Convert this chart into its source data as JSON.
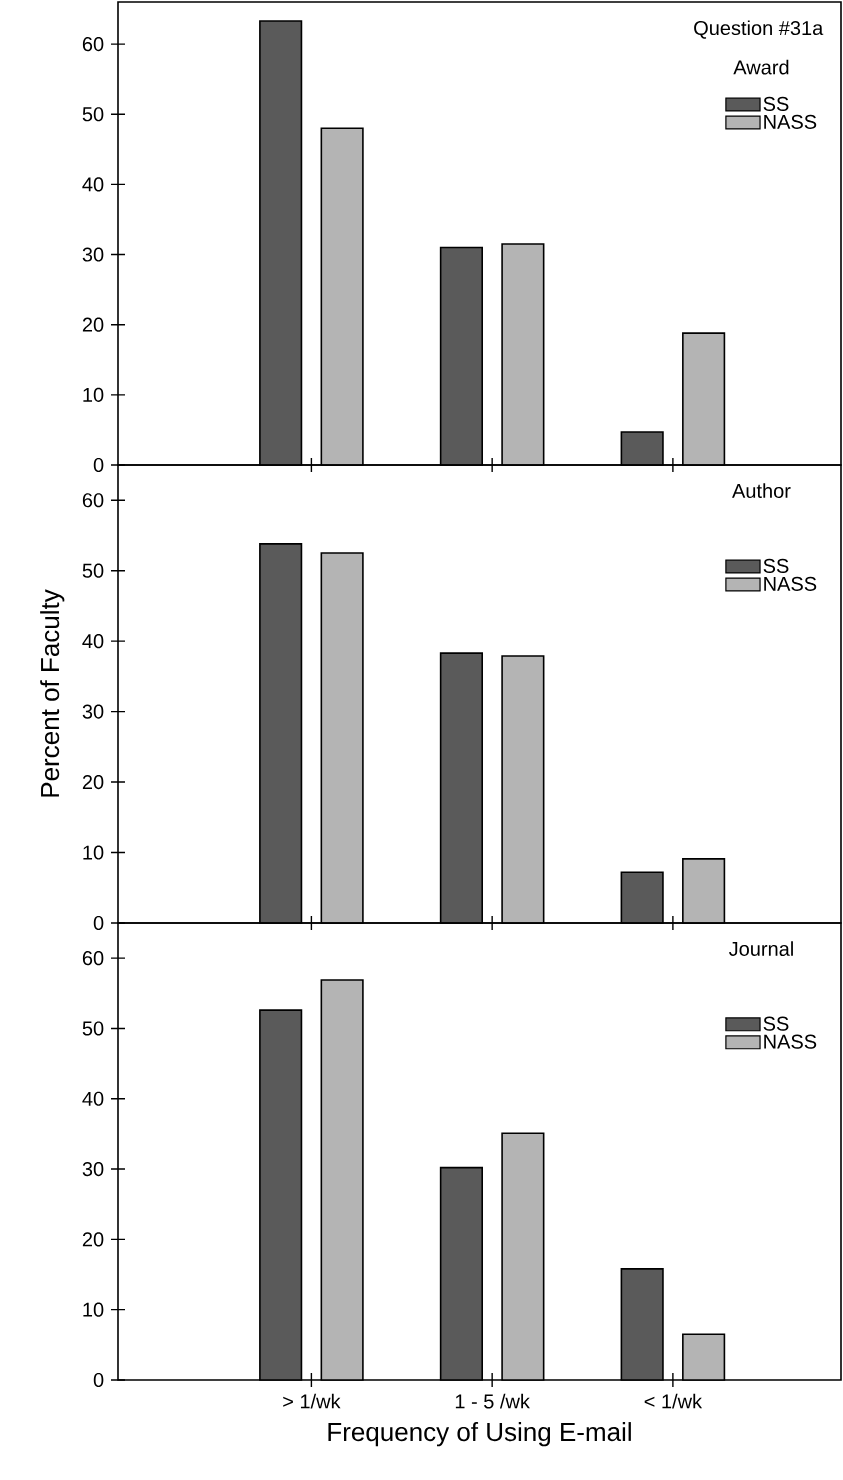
{
  "chart_data": [
    {
      "type": "bar",
      "title": "Question #31a",
      "subtitle": "Award",
      "categories": [
        null,
        null,
        null
      ],
      "series": [
        {
          "name": "SS",
          "color": "#5a5a5a",
          "values": [
            63.3,
            31,
            4.7
          ]
        },
        {
          "name": "NASS",
          "color": "#b4b4b4",
          "values": [
            48,
            31.5,
            18.8
          ]
        }
      ],
      "ylim": [
        0,
        66
      ],
      "yticks": [
        0,
        10,
        20,
        30,
        40,
        50,
        60
      ],
      "legend": "top right"
    },
    {
      "type": "bar",
      "title": "Author",
      "ylabel": "Percent of Faculty",
      "categories": [
        null,
        null,
        null
      ],
      "series": [
        {
          "name": "SS",
          "color": "#5a5a5a",
          "values": [
            53.8,
            38.3,
            7.2
          ]
        },
        {
          "name": "NASS",
          "color": "#b4b4b4",
          "values": [
            52.5,
            37.9,
            9.1
          ]
        }
      ],
      "ylim": [
        0,
        65
      ],
      "yticks": [
        0,
        10,
        20,
        30,
        40,
        50,
        60
      ],
      "legend": "top right"
    },
    {
      "type": "bar",
      "title": "Journal",
      "xlabel": "Frequency of Using E-mail",
      "categories": [
        "> 1/wk",
        "1 - 5 /wk",
        "< 1/wk"
      ],
      "series": [
        {
          "name": "SS",
          "color": "#5a5a5a",
          "values": [
            52.6,
            30.2,
            15.8
          ]
        },
        {
          "name": "NASS",
          "color": "#b4b4b4",
          "values": [
            56.9,
            35.1,
            6.5
          ]
        }
      ],
      "ylim": [
        0,
        65
      ],
      "yticks": [
        0,
        10,
        20,
        30,
        40,
        50,
        60
      ],
      "legend": "top right"
    }
  ]
}
